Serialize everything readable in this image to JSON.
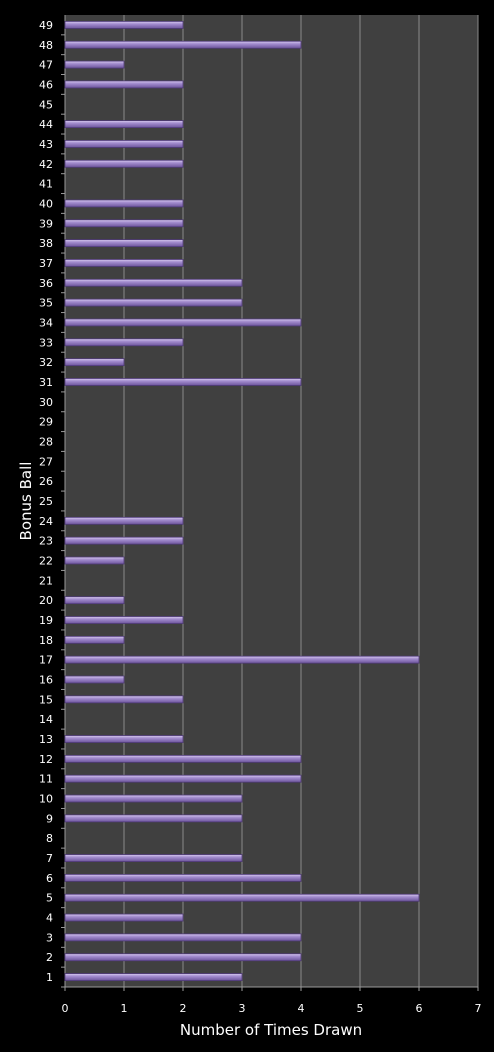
{
  "chart_data": {
    "type": "bar",
    "orientation": "horizontal",
    "title": "",
    "xlabel": "Number of Times Drawn",
    "ylabel": "Bonus Ball",
    "xlim": [
      0,
      7
    ],
    "x_ticks": [
      0,
      1,
      2,
      3,
      4,
      5,
      6,
      7
    ],
    "grid": true,
    "legend": "none",
    "colors": {
      "background": "#000000",
      "plot_area": "#404040",
      "gridline": "#8a8a8a",
      "bar": "#9f86c9",
      "bar_edge": "#4f3a78",
      "text": "#ffffff"
    },
    "categories": [
      "1",
      "2",
      "3",
      "4",
      "5",
      "6",
      "7",
      "8",
      "9",
      "10",
      "11",
      "12",
      "13",
      "14",
      "15",
      "16",
      "17",
      "18",
      "19",
      "20",
      "21",
      "22",
      "23",
      "24",
      "25",
      "26",
      "27",
      "28",
      "29",
      "30",
      "31",
      "32",
      "33",
      "34",
      "35",
      "36",
      "37",
      "38",
      "39",
      "40",
      "41",
      "42",
      "43",
      "44",
      "45",
      "46",
      "47",
      "48",
      "49"
    ],
    "values": [
      3,
      4,
      4,
      2,
      6,
      4,
      3,
      0,
      3,
      3,
      4,
      4,
      2,
      0,
      2,
      1,
      6,
      1,
      2,
      1,
      0,
      1,
      2,
      2,
      0,
      0,
      0,
      0,
      0,
      0,
      4,
      1,
      2,
      4,
      3,
      3,
      2,
      2,
      2,
      2,
      0,
      2,
      2,
      2,
      0,
      2,
      1,
      4,
      2
    ]
  }
}
